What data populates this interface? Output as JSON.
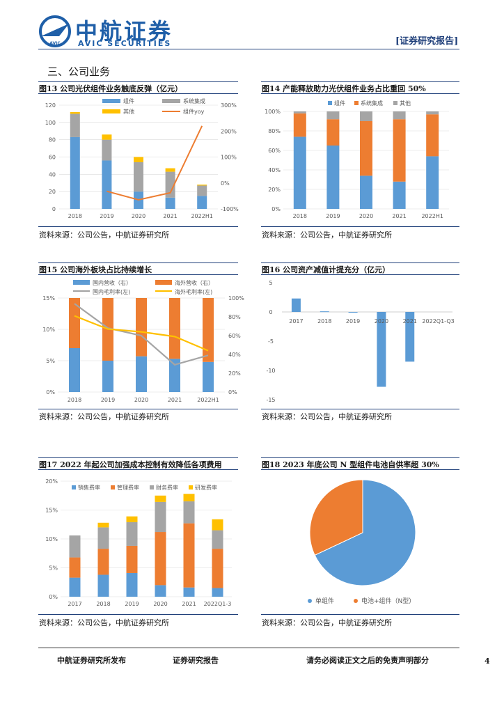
{
  "header": {
    "company_cn": "中航证券",
    "company_en": "AVIC SECURITIES",
    "logo_text": "AVIC",
    "report_type": "证券研究报告"
  },
  "section": {
    "title": "三、公司业务"
  },
  "colors": {
    "blue": "#5b9bd5",
    "orange": "#ed7d31",
    "gray": "#a5a5a5",
    "yellow": "#ffc000",
    "navy": "#1f3f7a"
  },
  "figures": [
    {
      "title": "图13 公司光伏组件业务触底反弹（亿元）",
      "source": "资料来源：公司公告，中航证券研究所"
    },
    {
      "title": "图14 产能释放助力光伏组件业务占比重回 50%",
      "source": "资料来源：公司公告，中航证券研究所"
    },
    {
      "title": "图15 公司海外板块占比持续增长",
      "source": "资料来源：公司公告，中航证券研究所"
    },
    {
      "title": "图16 公司资产减值计提充分（亿元）",
      "source": "资料来源：公司公告，中航证券研究所"
    },
    {
      "title": "图17 2022 年起公司加强成本控制有效降低各项费用",
      "source": "资料来源：公司公告，中航证券研究所"
    },
    {
      "title": "图18 2023 年底公司 N 型组件电池自供率超 30%",
      "source": "资料来源：公司公告，中航证券研究所"
    }
  ],
  "footer": {
    "publisher": "中航证券研究所发布",
    "report_type": "证券研究报告",
    "disclaimer": "请务必阅读正文之后的免责声明部分",
    "page_number": "4"
  },
  "chart_data": [
    {
      "id": "fig13",
      "type": "bar",
      "categories": [
        "2018",
        "2019",
        "2020",
        "2021",
        "2022H1"
      ],
      "series": [
        {
          "name": "组件",
          "values": [
            83,
            56,
            20,
            13,
            15
          ],
          "color": "#5b9bd5"
        },
        {
          "name": "系统集成",
          "values": [
            27,
            24,
            34,
            30,
            12
          ],
          "color": "#a5a5a5"
        },
        {
          "name": "其他",
          "values": [
            2,
            6,
            6,
            4,
            1
          ],
          "color": "#ffc000"
        }
      ],
      "line": {
        "name": "组件yoy",
        "values": [
          null,
          -32,
          -65,
          -38,
          220
        ],
        "color": "#ed7d31"
      },
      "ylim": [
        0,
        120
      ],
      "yticks": [
        0,
        20,
        40,
        60,
        80,
        100,
        120
      ],
      "y2lim": [
        -100,
        300
      ],
      "y2ticks": [
        "-100%",
        "0%",
        "100%",
        "200%",
        "300%"
      ]
    },
    {
      "id": "fig14",
      "type": "bar",
      "categories": [
        "2018",
        "2019",
        "2020",
        "2021",
        "2022H1"
      ],
      "series": [
        {
          "name": "组件",
          "values": [
            74,
            65,
            34,
            28,
            54
          ],
          "color": "#5b9bd5"
        },
        {
          "name": "系统集成",
          "values": [
            24,
            27,
            56,
            64,
            43
          ],
          "color": "#ed7d31"
        },
        {
          "name": "其他",
          "values": [
            2,
            8,
            10,
            8,
            3
          ],
          "color": "#a5a5a5"
        }
      ],
      "ylim": [
        0,
        100
      ],
      "yticks": [
        "0%",
        "20%",
        "40%",
        "60%",
        "80%",
        "100%"
      ]
    },
    {
      "id": "fig15",
      "type": "bar",
      "categories": [
        "2018",
        "2019",
        "2020",
        "2021",
        "2022H1"
      ],
      "series": [
        {
          "name": "国内营收（右）",
          "values": [
            7.0,
            5.0,
            5.7,
            5.3,
            4.8
          ],
          "color": "#5b9bd5"
        },
        {
          "name": "海外营收（右）",
          "values": [
            8.0,
            10.0,
            9.3,
            9.7,
            10.2
          ],
          "color": "#ed7d31"
        }
      ],
      "lines": [
        {
          "name": "国内毛利率(左)",
          "values": [
            94,
            68,
            60,
            29,
            39
          ],
          "color": "#a5a5a5"
        },
        {
          "name": "海外毛利率(左)",
          "values": [
            81,
            67,
            64,
            59,
            44
          ],
          "color": "#ffc000"
        }
      ],
      "ylim": [
        0,
        15
      ],
      "yticks": [
        "0%",
        "5%",
        "10%",
        "15%"
      ],
      "y2lim": [
        0,
        100
      ],
      "y2ticks": [
        "0%",
        "20%",
        "40%",
        "60%",
        "80%",
        "100%"
      ]
    },
    {
      "id": "fig16",
      "type": "bar",
      "categories": [
        "2017",
        "2018",
        "2019",
        "2020",
        "2021",
        "2022Q1-Q3"
      ],
      "values": [
        2.3,
        0.1,
        -0.1,
        -12.8,
        -8.5,
        0
      ],
      "ylim": [
        -15,
        5
      ],
      "yticks": [
        "5",
        "0",
        "-5",
        "-10",
        "-15"
      ]
    },
    {
      "id": "fig17",
      "type": "bar",
      "categories": [
        "2017",
        "2018",
        "2019",
        "2020",
        "2021",
        "2022Q1-3"
      ],
      "series": [
        {
          "name": "销售费率",
          "values": [
            3.3,
            3.8,
            4.1,
            2.0,
            1.6,
            1.5
          ],
          "color": "#5b9bd5"
        },
        {
          "name": "管理费率",
          "values": [
            3.5,
            4.5,
            4.7,
            9.2,
            11.1,
            6.8
          ],
          "color": "#ed7d31"
        },
        {
          "name": "财务费率",
          "values": [
            3.8,
            3.7,
            4.1,
            5.2,
            3.8,
            3.2
          ],
          "color": "#a5a5a5"
        },
        {
          "name": "研发费率",
          "values": [
            0.0,
            0.8,
            1.0,
            1.1,
            1.3,
            1.9
          ],
          "color": "#ffc000"
        }
      ],
      "ylim": [
        0,
        20
      ],
      "yticks": [
        "0%",
        "5%",
        "10%",
        "15%",
        "20%"
      ]
    },
    {
      "id": "fig18",
      "type": "pie",
      "labels": [
        "单组件",
        "电池+组件（N型）"
      ],
      "values": [
        68,
        32
      ],
      "colors": [
        "#5b9bd5",
        "#ed7d31"
      ]
    }
  ]
}
